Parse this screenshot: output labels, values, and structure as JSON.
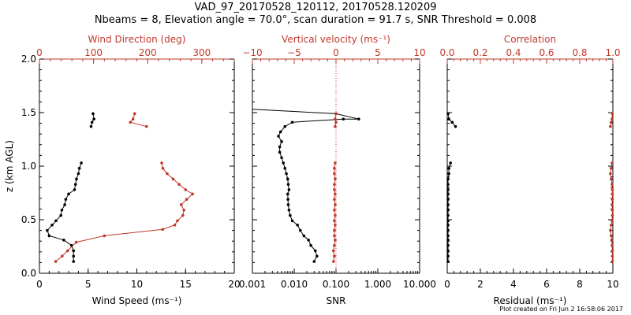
{
  "header": {
    "title": "VAD_97_20170528_120112, 20170528.120209",
    "subtitle": "Nbeams = 8, Elevation angle = 70.0°, scan duration = 91.7 s, SNR Threshold = 0.008"
  },
  "footer": {
    "text": "Plot created on Fri Jun  2 16:58:06 2017"
  },
  "colors": {
    "black": "#000000",
    "red": "#c0392b"
  },
  "ylabel": "z (km AGL)",
  "chart_data": [
    {
      "type": "line",
      "panel": "left",
      "ylabel": "z (km AGL)",
      "ylim": [
        0,
        2.0
      ],
      "yticks": [
        "0.0",
        "0.5",
        "1.0",
        "1.5",
        "2.0"
      ],
      "bottom_axis": {
        "label": "Wind Speed (ms⁻¹)",
        "lim": [
          0,
          20
        ],
        "scale": "linear",
        "ticks": [
          0,
          5,
          10,
          15,
          20
        ],
        "ticklabels": [
          "0",
          "5",
          "10",
          "15",
          "20"
        ]
      },
      "top_axis": {
        "label": "Wind Direction (deg)",
        "lim": [
          0,
          360
        ],
        "scale": "linear",
        "ticks": [
          0,
          100,
          200,
          300
        ],
        "ticklabels": [
          "0",
          "100",
          "200",
          "300"
        ]
      },
      "series": [
        {
          "axis": "bottom",
          "color": "black",
          "segments": [
            [
              [
                3.5,
                0.11
              ],
              [
                3.5,
                0.16
              ],
              [
                3.5,
                0.21
              ],
              [
                3.3,
                0.26
              ],
              [
                2.5,
                0.31
              ],
              [
                1.0,
                0.35
              ],
              [
                0.8,
                0.4
              ],
              [
                1.3,
                0.45
              ],
              [
                1.7,
                0.49
              ],
              [
                2.2,
                0.54
              ],
              [
                2.3,
                0.59
              ],
              [
                2.6,
                0.64
              ],
              [
                2.7,
                0.69
              ],
              [
                3.0,
                0.74
              ],
              [
                3.6,
                0.78
              ],
              [
                3.7,
                0.83
              ],
              [
                3.8,
                0.88
              ],
              [
                4.0,
                0.93
              ],
              [
                4.1,
                0.98
              ],
              [
                4.3,
                1.03
              ]
            ],
            [
              [
                5.5,
                1.49
              ],
              [
                5.6,
                1.44
              ],
              [
                5.4,
                1.41
              ],
              [
                5.3,
                1.37
              ]
            ]
          ]
        },
        {
          "axis": "top",
          "color": "red",
          "segments": [
            [
              [
                30,
                0.11
              ],
              [
                42,
                0.16
              ],
              [
                52,
                0.21
              ],
              [
                68,
                0.29
              ],
              [
                120,
                0.35
              ],
              [
                228,
                0.41
              ],
              [
                250,
                0.45
              ],
              [
                255,
                0.49
              ],
              [
                265,
                0.54
              ],
              [
                267,
                0.59
              ],
              [
                262,
                0.64
              ],
              [
                272,
                0.69
              ],
              [
                283,
                0.74
              ],
              [
                270,
                0.78
              ],
              [
                258,
                0.83
              ],
              [
                247,
                0.88
              ],
              [
                236,
                0.93
              ],
              [
                228,
                0.98
              ],
              [
                226,
                1.03
              ]
            ],
            [
              [
                176,
                1.49
              ],
              [
                173,
                1.44
              ],
              [
                168,
                1.41
              ],
              [
                198,
                1.37
              ]
            ]
          ]
        }
      ]
    },
    {
      "type": "line",
      "panel": "middle",
      "ylim": [
        0,
        2.0
      ],
      "bottom_axis": {
        "label": "SNR",
        "lim": [
          0.001,
          10
        ],
        "scale": "log",
        "ticks": [
          0.001,
          0.01,
          0.1,
          1,
          10
        ],
        "ticklabels": [
          "0.001",
          "0.010",
          "0.100",
          "1.000",
          "10.000"
        ]
      },
      "top_axis": {
        "label": "Vertical velocity (ms⁻¹)",
        "lim": [
          -10,
          10
        ],
        "scale": "linear",
        "ticks": [
          -10,
          -5,
          0,
          5,
          10
        ],
        "ticklabels": [
          "−10",
          "−5",
          "0",
          "5",
          "10"
        ]
      },
      "reference_line": {
        "axis": "top",
        "value": 0,
        "style": "dotted",
        "color": "red"
      },
      "series": [
        {
          "axis": "bottom",
          "color": "black",
          "segments": [
            [
              [
                0.03,
                0.11
              ],
              [
                0.035,
                0.16
              ],
              [
                0.032,
                0.21
              ],
              [
                0.025,
                0.26
              ],
              [
                0.022,
                0.31
              ],
              [
                0.017,
                0.35
              ],
              [
                0.014,
                0.4
              ],
              [
                0.012,
                0.45
              ],
              [
                0.009,
                0.49
              ],
              [
                0.008,
                0.54
              ],
              [
                0.0075,
                0.59
              ],
              [
                0.0072,
                0.64
              ],
              [
                0.0071,
                0.69
              ],
              [
                0.007,
                0.74
              ],
              [
                0.0075,
                0.78
              ],
              [
                0.0072,
                0.83
              ],
              [
                0.007,
                0.88
              ],
              [
                0.0065,
                0.93
              ],
              [
                0.006,
                0.98
              ],
              [
                0.0055,
                1.03
              ],
              [
                0.005,
                1.08
              ],
              [
                0.0045,
                1.13
              ],
              [
                0.0045,
                1.18
              ],
              [
                0.005,
                1.23
              ],
              [
                0.0042,
                1.28
              ],
              [
                0.0047,
                1.32
              ],
              [
                0.006,
                1.37
              ],
              [
                0.009,
                1.41
              ],
              [
                0.15,
                1.44
              ],
              [
                0.35,
                1.44
              ],
              [
                0.1,
                1.49
              ],
              [
                0.0004,
                1.54
              ]
            ]
          ]
        },
        {
          "axis": "top",
          "color": "red",
          "segments": [
            [
              [
                -0.3,
                0.11
              ],
              [
                -0.2,
                0.16
              ],
              [
                -0.3,
                0.21
              ],
              [
                -0.2,
                0.26
              ],
              [
                -0.1,
                0.31
              ],
              [
                -0.2,
                0.35
              ],
              [
                -0.2,
                0.4
              ],
              [
                -0.1,
                0.45
              ],
              [
                -0.2,
                0.49
              ],
              [
                -0.1,
                0.54
              ],
              [
                -0.2,
                0.59
              ],
              [
                -0.1,
                0.64
              ],
              [
                -0.2,
                0.69
              ],
              [
                -0.1,
                0.74
              ],
              [
                -0.2,
                0.78
              ],
              [
                -0.2,
                0.83
              ],
              [
                -0.1,
                0.88
              ],
              [
                -0.2,
                0.93
              ],
              [
                -0.2,
                0.98
              ],
              [
                -0.1,
                1.03
              ]
            ],
            [
              [
                0.0,
                1.49
              ],
              [
                -0.1,
                1.44
              ],
              [
                0.0,
                1.41
              ],
              [
                -0.1,
                1.37
              ]
            ]
          ]
        }
      ]
    },
    {
      "type": "line",
      "panel": "right",
      "ylim": [
        0,
        2.0
      ],
      "bottom_axis": {
        "label": "Residual (ms⁻¹)",
        "lim": [
          0,
          10
        ],
        "scale": "linear",
        "ticks": [
          0,
          2,
          4,
          6,
          8,
          10
        ],
        "ticklabels": [
          "0",
          "2",
          "4",
          "6",
          "8",
          "10"
        ]
      },
      "top_axis": {
        "label": "Correlation",
        "lim": [
          0,
          1
        ],
        "scale": "linear",
        "ticks": [
          0,
          0.2,
          0.4,
          0.6,
          0.8,
          1.0
        ],
        "ticklabels": [
          "0.0",
          "0.2",
          "0.4",
          "0.6",
          "0.8",
          "1.0"
        ]
      },
      "series": [
        {
          "axis": "bottom",
          "color": "black",
          "segments": [
            [
              [
                0.05,
                0.11
              ],
              [
                0.05,
                0.16
              ],
              [
                0.05,
                0.21
              ],
              [
                0.05,
                0.26
              ],
              [
                0.05,
                0.31
              ],
              [
                0.05,
                0.35
              ],
              [
                0.05,
                0.4
              ],
              [
                0.05,
                0.45
              ],
              [
                0.05,
                0.49
              ],
              [
                0.05,
                0.54
              ],
              [
                0.05,
                0.59
              ],
              [
                0.05,
                0.64
              ],
              [
                0.05,
                0.69
              ],
              [
                0.05,
                0.74
              ],
              [
                0.05,
                0.78
              ],
              [
                0.05,
                0.83
              ],
              [
                0.05,
                0.88
              ],
              [
                0.1,
                0.93
              ],
              [
                0.1,
                0.98
              ],
              [
                0.2,
                1.03
              ]
            ],
            [
              [
                0.05,
                1.49
              ],
              [
                0.1,
                1.44
              ],
              [
                0.3,
                1.41
              ],
              [
                0.5,
                1.37
              ]
            ]
          ]
        },
        {
          "axis": "top",
          "color": "red",
          "segments": [
            [
              [
                0.997,
                0.11
              ],
              [
                0.997,
                0.16
              ],
              [
                0.997,
                0.21
              ],
              [
                0.995,
                0.26
              ],
              [
                0.993,
                0.31
              ],
              [
                0.99,
                0.35
              ],
              [
                0.985,
                0.4
              ],
              [
                0.99,
                0.45
              ],
              [
                0.995,
                0.49
              ],
              [
                0.997,
                0.54
              ],
              [
                0.997,
                0.59
              ],
              [
                0.995,
                0.64
              ],
              [
                0.997,
                0.69
              ],
              [
                0.997,
                0.74
              ],
              [
                0.997,
                0.78
              ],
              [
                0.995,
                0.83
              ],
              [
                0.99,
                0.88
              ],
              [
                0.985,
                0.93
              ],
              [
                0.99,
                0.98
              ],
              [
                0.995,
                1.03
              ]
            ],
            [
              [
                0.997,
                1.49
              ],
              [
                0.995,
                1.44
              ],
              [
                0.99,
                1.41
              ],
              [
                0.985,
                1.37
              ]
            ]
          ]
        }
      ]
    }
  ]
}
